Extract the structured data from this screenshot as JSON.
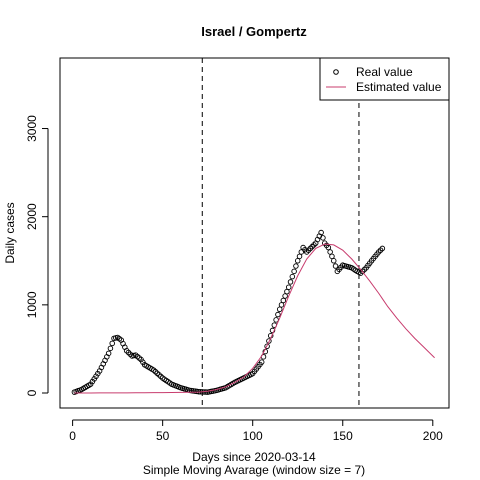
{
  "chart_data": {
    "type": "scatter",
    "title": "Israel / Gompertz",
    "xlabel": [
      "Days since 2020-03-14",
      "Simple Moving Avarage (window size = 7)"
    ],
    "ylabel": "Daily cases",
    "xlim": [
      -7,
      209
    ],
    "ylim": [
      -170,
      3800
    ],
    "xticks": [
      0,
      50,
      100,
      150,
      200
    ],
    "yticks": [
      0,
      1000,
      2000,
      3000
    ],
    "vlines": [
      72,
      159
    ],
    "legend": "topright",
    "series": [
      {
        "name": "Real value",
        "type": "scatter",
        "color": "#000000",
        "x": [
          1,
          2,
          3,
          4,
          5,
          6,
          7,
          8,
          9,
          10,
          11,
          12,
          13,
          14,
          15,
          16,
          17,
          18,
          19,
          20,
          21,
          22,
          23,
          24,
          25,
          26,
          27,
          28,
          29,
          30,
          31,
          32,
          33,
          34,
          35,
          36,
          37,
          38,
          39,
          40,
          41,
          42,
          43,
          44,
          45,
          46,
          47,
          48,
          49,
          50,
          51,
          52,
          53,
          54,
          55,
          56,
          57,
          58,
          59,
          60,
          61,
          62,
          63,
          64,
          65,
          66,
          67,
          68,
          69,
          70,
          71,
          72,
          73,
          74,
          75,
          76,
          77,
          78,
          79,
          80,
          81,
          82,
          83,
          84,
          85,
          86,
          87,
          88,
          89,
          90,
          91,
          92,
          93,
          94,
          95,
          96,
          97,
          98,
          99,
          100,
          101,
          102,
          103,
          104,
          105,
          106,
          107,
          108,
          109,
          110,
          111,
          112,
          113,
          114,
          115,
          116,
          117,
          118,
          119,
          120,
          121,
          122,
          123,
          124,
          125,
          126,
          127,
          128,
          129,
          130,
          131,
          132,
          133,
          134,
          135,
          136,
          137,
          138,
          139,
          140,
          141,
          142,
          143,
          144,
          145,
          146,
          147,
          148,
          149,
          150,
          151,
          152,
          153,
          154,
          155,
          156,
          157,
          158,
          159,
          160,
          161,
          162,
          163,
          164,
          165,
          166,
          167,
          168,
          169,
          170,
          171,
          172
        ],
        "values": [
          10,
          17,
          25,
          32,
          40,
          52,
          64,
          76,
          88,
          100,
          130,
          160,
          190,
          220,
          250,
          290,
          330,
          370,
          410,
          450,
          507,
          563,
          620,
          625,
          630,
          615,
          600,
          560,
          520,
          480,
          460,
          440,
          420,
          425,
          430,
          413,
          397,
          380,
          350,
          320,
          308,
          296,
          284,
          272,
          260,
          242,
          224,
          206,
          188,
          170,
          156,
          142,
          128,
          114,
          100,
          92,
          84,
          76,
          68,
          60,
          54,
          48,
          42,
          36,
          30,
          27,
          24,
          21,
          18,
          15,
          14,
          13,
          12,
          11,
          10,
          14,
          18,
          22,
          26,
          30,
          36,
          42,
          48,
          54,
          60,
          72,
          84,
          96,
          108,
          120,
          130,
          140,
          150,
          160,
          170,
          180,
          190,
          200,
          210,
          220,
          246,
          272,
          298,
          324,
          350,
          410,
          470,
          530,
          590,
          650,
          710,
          770,
          830,
          890,
          950,
          1000,
          1050,
          1100,
          1150,
          1200,
          1260,
          1320,
          1380,
          1440,
          1500,
          1550,
          1600,
          1650,
          1625,
          1600,
          1620,
          1640,
          1660,
          1680,
          1700,
          1740,
          1780,
          1820,
          1760,
          1700,
          1675,
          1650,
          1600,
          1550,
          1500,
          1440,
          1380,
          1403,
          1427,
          1450,
          1444,
          1438,
          1432,
          1426,
          1420,
          1407,
          1393,
          1380,
          1370,
          1360,
          1380,
          1400,
          1420,
          1447,
          1473,
          1500,
          1525,
          1550,
          1575,
          1600,
          1620,
          1640
        ]
      },
      {
        "name": "Estimated value",
        "type": "line",
        "color": "#c83c6e",
        "x": [
          1,
          5,
          10,
          15,
          20,
          25,
          30,
          35,
          40,
          45,
          50,
          55,
          60,
          65,
          70,
          75,
          80,
          85,
          90,
          95,
          100,
          105,
          110,
          115,
          120,
          125,
          130,
          135,
          140,
          145,
          150,
          155,
          160,
          165,
          170,
          175,
          180,
          185,
          190,
          195,
          200,
          201
        ],
        "values": [
          0,
          0,
          0,
          1,
          1,
          2,
          2,
          3,
          3,
          4,
          5,
          6,
          7,
          8,
          10,
          20,
          40,
          70,
          120,
          180,
          280,
          420,
          620,
          850,
          1100,
          1330,
          1520,
          1640,
          1690,
          1680,
          1620,
          1520,
          1400,
          1270,
          1130,
          980,
          850,
          730,
          620,
          520,
          420,
          400
        ]
      }
    ]
  }
}
